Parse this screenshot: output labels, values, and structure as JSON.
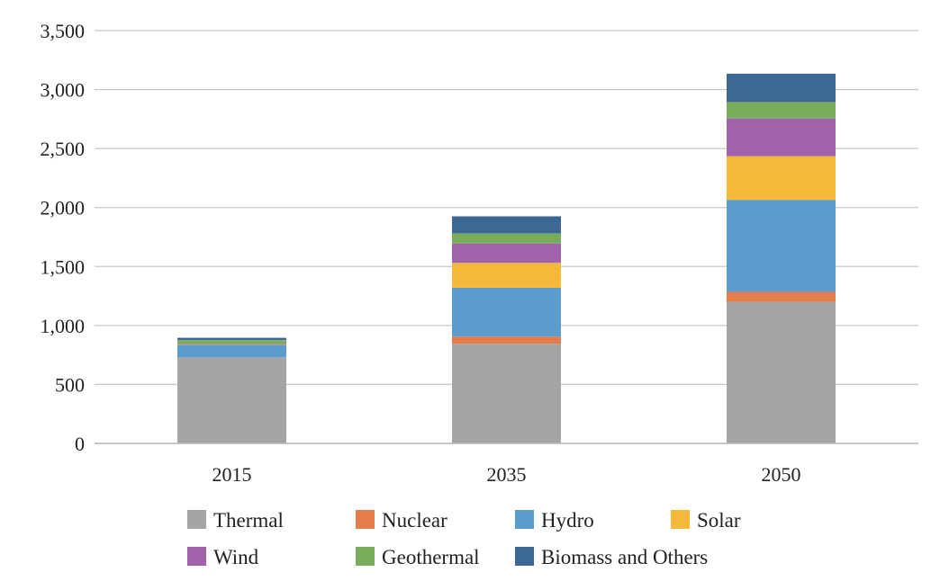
{
  "chart_data": {
    "type": "bar",
    "stacked": true,
    "title": "",
    "xlabel": "",
    "ylabel": "",
    "ylim": [
      0,
      3500
    ],
    "yticks": [
      0,
      500,
      1000,
      1500,
      2000,
      2500,
      3000,
      3500
    ],
    "ytick_labels": [
      "0",
      "500",
      "1,000",
      "1,500",
      "2,000",
      "2,500",
      "3,000",
      "3,500"
    ],
    "grid": true,
    "legend_position": "bottom",
    "categories": [
      "2015",
      "2035",
      "2050"
    ],
    "series": [
      {
        "name": "Thermal",
        "color": "#a5a5a8",
        "values": [
          730,
          845,
          1200
        ]
      },
      {
        "name": "Nuclear",
        "color": "#e47c4c",
        "values": [
          0,
          60,
          85
        ]
      },
      {
        "name": "Hydro",
        "color": "#5b9ccc",
        "values": [
          105,
          415,
          780
        ]
      },
      {
        "name": "Solar",
        "color": "#f4b93a",
        "values": [
          5,
          210,
          370
        ]
      },
      {
        "name": "Wind",
        "color": "#a063ab",
        "values": [
          5,
          165,
          320
        ]
      },
      {
        "name": "Geothermal",
        "color": "#79ad5c",
        "values": [
          30,
          85,
          140
        ]
      },
      {
        "name": "Biomass and Others",
        "color": "#3d6894",
        "values": [
          20,
          145,
          240
        ]
      }
    ]
  }
}
